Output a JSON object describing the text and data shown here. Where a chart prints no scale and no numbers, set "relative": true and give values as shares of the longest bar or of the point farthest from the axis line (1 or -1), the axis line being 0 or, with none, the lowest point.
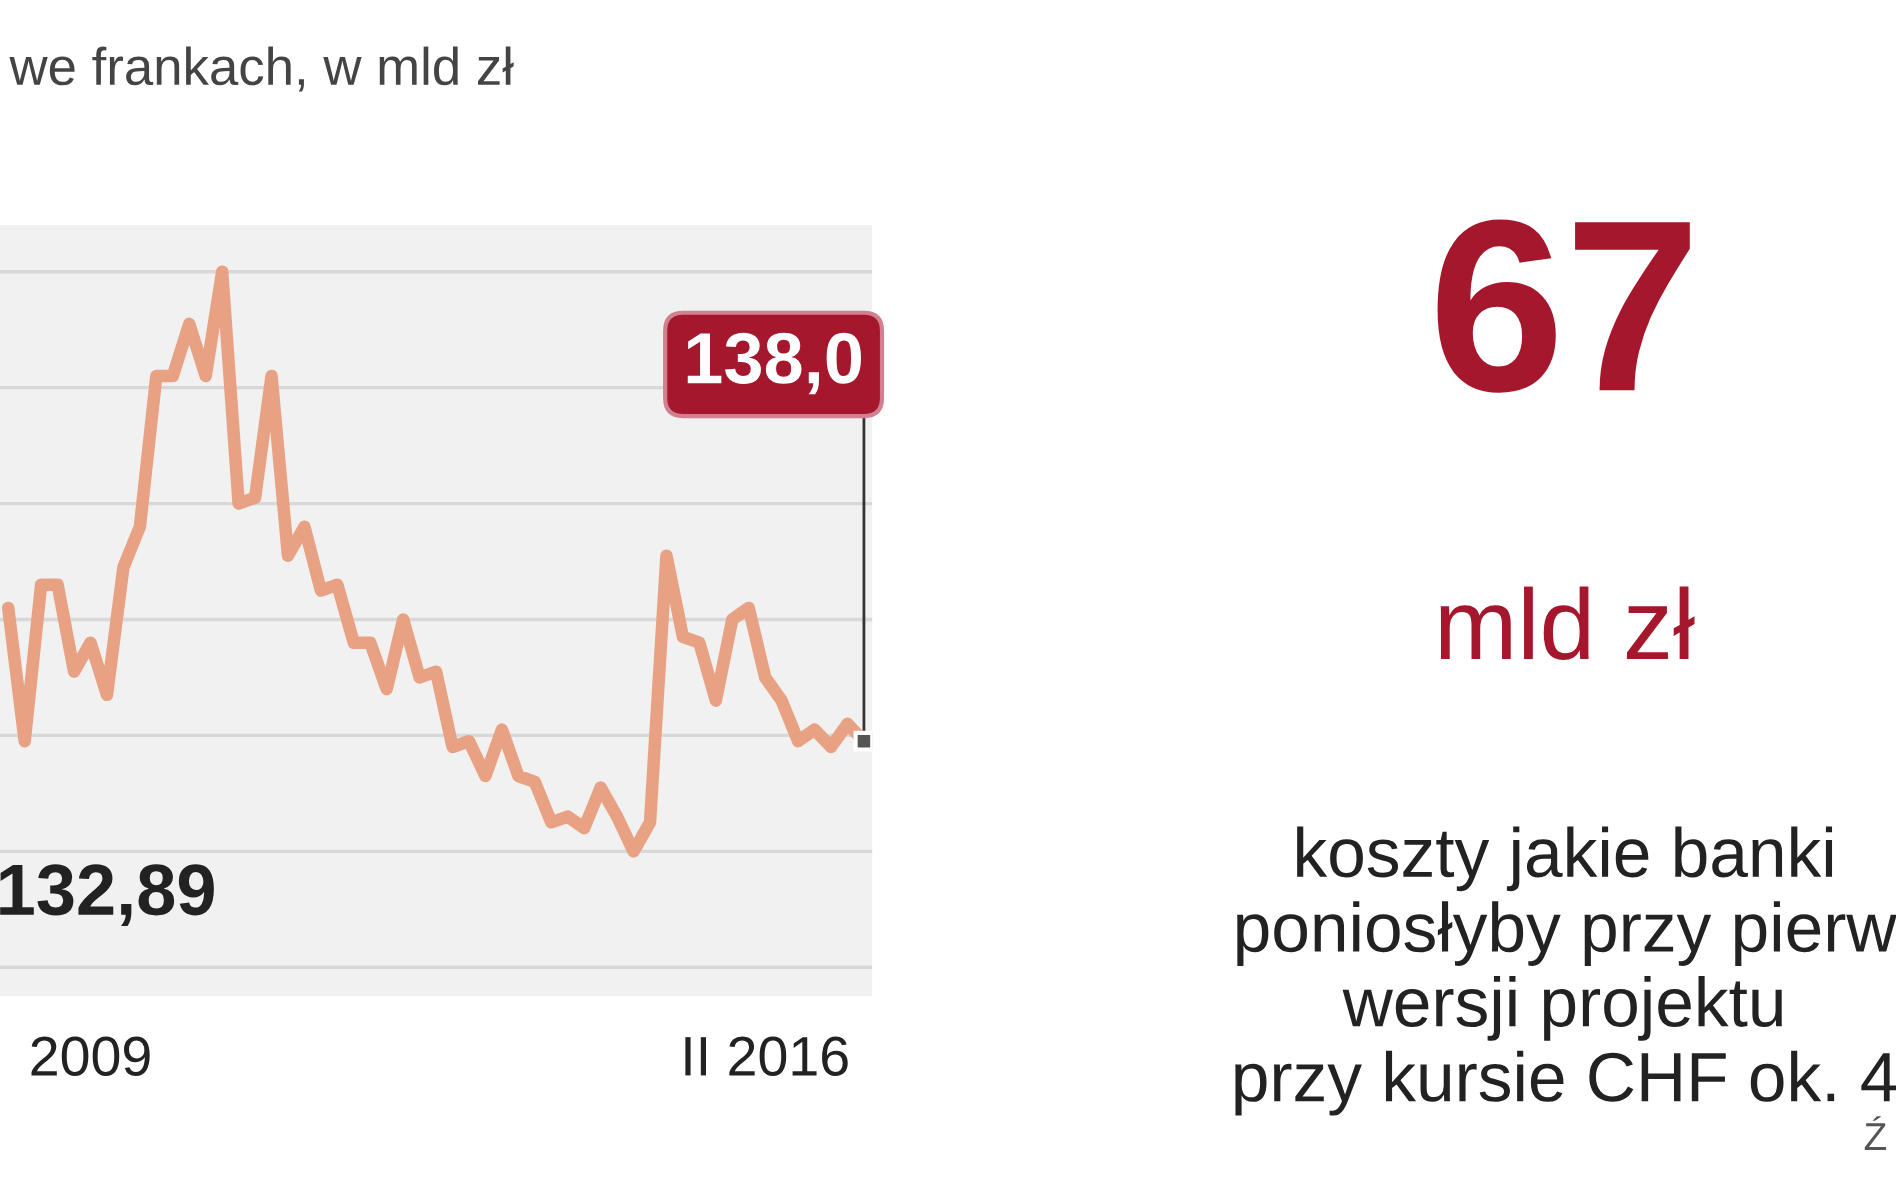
{
  "chart_data": [
    {
      "type": "line",
      "title": "we frankach, w mld zł",
      "relative": true,
      "grid": "y",
      "marker": "none",
      "line_style": "solid",
      "categories": [
        null,
        null,
        null,
        null,
        null,
        "2009",
        null,
        null,
        null,
        null,
        null,
        null,
        null,
        null,
        null,
        null,
        null,
        null,
        null,
        null,
        null,
        null,
        null,
        null,
        null,
        null,
        null,
        null,
        null,
        null,
        null,
        null,
        null,
        null,
        null,
        null,
        null,
        null,
        null,
        null,
        null,
        null,
        null,
        null,
        null,
        null,
        "II 2016",
        null,
        null,
        null,
        null,
        null,
        null
      ],
      "series": [
        {
          "color": "#e8a283",
          "values": [
            0.42,
            0.19,
            0.46,
            0.46,
            0.31,
            0.36,
            0.27,
            0.49,
            0.56,
            0.82,
            0.82,
            0.91,
            0.82,
            1,
            0.6,
            0.61,
            0.82,
            0.51,
            0.56,
            0.45,
            0.46,
            0.36,
            0.36,
            0.28,
            0.4,
            0.3,
            0.31,
            0.18,
            0.19,
            0.13,
            0.21,
            0.13,
            0.12,
            0.05,
            0.06,
            0.04,
            0.11,
            0.06,
            0,
            0.05,
            0.51,
            0.37,
            0.36,
            0.26,
            0.4,
            0.42,
            0.3,
            0.26,
            0.19,
            0.21,
            0.18,
            0.22,
            0.19
          ]
        }
      ],
      "annotations": [
        "138,0",
        "132,89"
      ]
    },
    {
      "type": "other",
      "annotations": [
        "67",
        "mld zł",
        "koszty jakie banki\nponiosłyby przy pierw\nwersji projektu\nprzy kursie CHF ok. 4",
        "Ź"
      ]
    }
  ]
}
